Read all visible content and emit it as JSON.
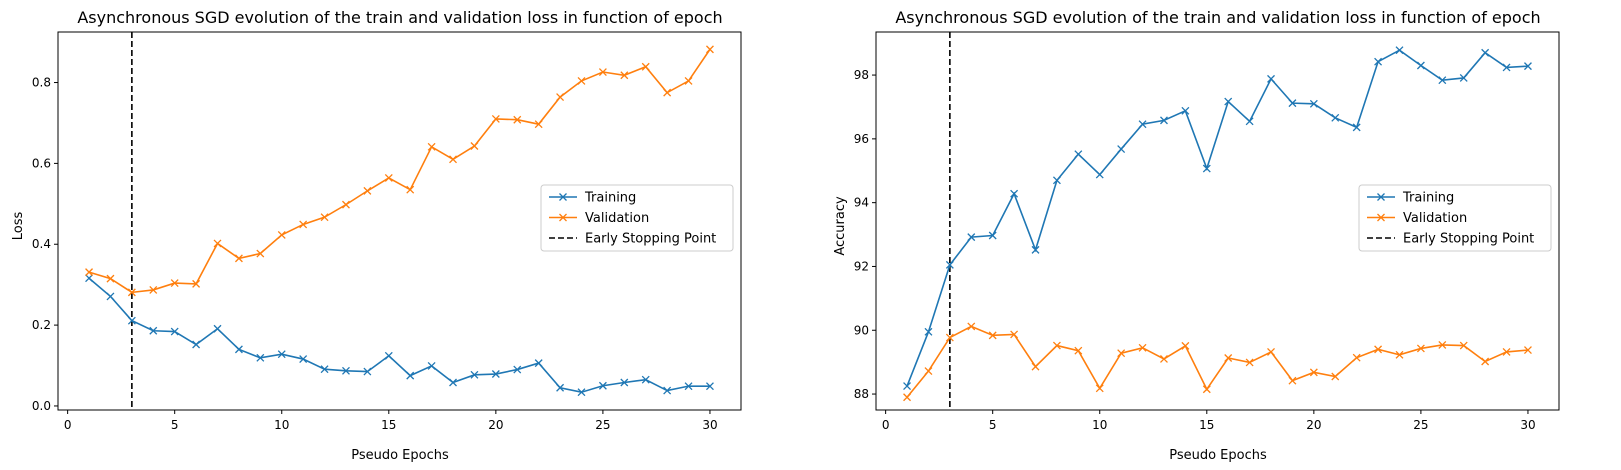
{
  "colors": {
    "training": "#1f77b4",
    "validation": "#ff7f0e",
    "early_stop": "#000000",
    "axes": "#000000",
    "legend_border": "#cccccc"
  },
  "chart_data": [
    {
      "type": "line",
      "title": "Asynchronous SGD evolution of the train and validation loss in function of epoch",
      "xlabel": "Pseudo Epochs",
      "ylabel": "Loss",
      "xlim": [
        -0.45,
        31.45
      ],
      "ylim": [
        -0.01,
        0.925
      ],
      "xticks": [
        0,
        5,
        10,
        15,
        20,
        25,
        30
      ],
      "xtick_labels": [
        "0",
        "5",
        "10",
        "15",
        "20",
        "25",
        "30"
      ],
      "yticks": [
        0.0,
        0.2,
        0.4,
        0.6,
        0.8
      ],
      "ytick_labels": [
        "0.0",
        "0.2",
        "0.4",
        "0.6",
        "0.8"
      ],
      "grid": false,
      "legend_position": "center-right",
      "early_stop_x": 3,
      "x": [
        1,
        2,
        3,
        4,
        5,
        6,
        7,
        8,
        9,
        10,
        11,
        12,
        13,
        14,
        15,
        16,
        17,
        18,
        19,
        20,
        21,
        22,
        23,
        24,
        25,
        26,
        27,
        28,
        29,
        30
      ],
      "series": [
        {
          "name": "Training",
          "marker": "x",
          "values": [
            0.316,
            0.271,
            0.211,
            0.186,
            0.184,
            0.152,
            0.191,
            0.14,
            0.119,
            0.128,
            0.116,
            0.091,
            0.087,
            0.085,
            0.124,
            0.075,
            0.099,
            0.058,
            0.077,
            0.079,
            0.09,
            0.106,
            0.045,
            0.034,
            0.05,
            0.058,
            0.065,
            0.038,
            0.049,
            0.049
          ]
        },
        {
          "name": "Validation",
          "marker": "x",
          "values": [
            0.331,
            0.315,
            0.281,
            0.287,
            0.304,
            0.302,
            0.402,
            0.365,
            0.377,
            0.423,
            0.449,
            0.467,
            0.498,
            0.532,
            0.564,
            0.535,
            0.641,
            0.61,
            0.643,
            0.71,
            0.708,
            0.697,
            0.764,
            0.804,
            0.826,
            0.818,
            0.839,
            0.775,
            0.804,
            0.882
          ]
        }
      ],
      "legend": [
        "Training",
        "Validation",
        "Early Stopping Point"
      ]
    },
    {
      "type": "line",
      "title": "Asynchronous SGD evolution of the train and validation loss in function of epoch",
      "xlabel": "Pseudo Epochs",
      "ylabel": "Accuracy",
      "xlim": [
        -0.45,
        31.45
      ],
      "ylim": [
        87.5,
        99.35
      ],
      "xticks": [
        0,
        5,
        10,
        15,
        20,
        25,
        30
      ],
      "xtick_labels": [
        "0",
        "5",
        "10",
        "15",
        "20",
        "25",
        "30"
      ],
      "yticks": [
        88,
        90,
        92,
        94,
        96,
        98
      ],
      "ytick_labels": [
        "88",
        "90",
        "92",
        "94",
        "96",
        "98"
      ],
      "grid": false,
      "legend_position": "center-right",
      "early_stop_x": 3,
      "x": [
        1,
        2,
        3,
        4,
        5,
        6,
        7,
        8,
        9,
        10,
        11,
        12,
        13,
        14,
        15,
        16,
        17,
        18,
        19,
        20,
        21,
        22,
        23,
        24,
        25,
        26,
        27,
        28,
        29,
        30
      ],
      "series": [
        {
          "name": "Training",
          "marker": "x",
          "values": [
            88.25,
            89.95,
            92.05,
            92.92,
            92.97,
            94.28,
            92.52,
            94.7,
            95.52,
            94.88,
            95.68,
            96.46,
            96.58,
            96.88,
            95.07,
            97.17,
            96.55,
            97.88,
            97.12,
            97.1,
            96.66,
            96.36,
            98.42,
            98.78,
            98.3,
            97.84,
            97.91,
            98.7,
            98.24,
            98.28
          ]
        },
        {
          "name": "Validation",
          "marker": "x",
          "values": [
            87.9,
            88.72,
            89.77,
            90.12,
            89.84,
            89.87,
            88.86,
            89.52,
            89.36,
            88.18,
            89.28,
            89.45,
            89.1,
            89.51,
            88.15,
            89.13,
            88.99,
            89.32,
            88.42,
            88.68,
            88.55,
            89.14,
            89.4,
            89.23,
            89.43,
            89.54,
            89.52,
            89.02,
            89.32,
            89.38
          ]
        }
      ],
      "legend": [
        "Training",
        "Validation",
        "Early Stopping Point"
      ]
    }
  ]
}
